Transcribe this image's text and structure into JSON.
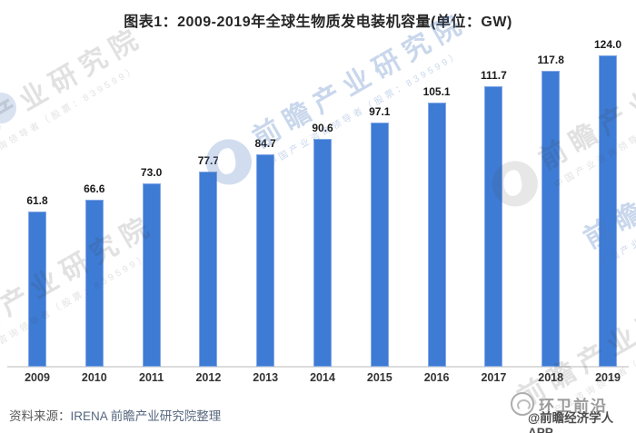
{
  "title": "图表1：2009-2019年全球生物质发电装机容量(单位：GW)",
  "chart_data": {
    "type": "bar",
    "title": "图表1：2009-2019年全球生物质发电装机容量(单位：GW)",
    "categories": [
      "2009",
      "2010",
      "2011",
      "2012",
      "2013",
      "2014",
      "2015",
      "2016",
      "2017",
      "2018",
      "2019"
    ],
    "values": [
      61.8,
      66.6,
      73.0,
      77.7,
      84.7,
      90.6,
      97.1,
      105.1,
      111.7,
      117.8,
      124.0
    ],
    "value_labels": [
      "61.8",
      "66.6",
      "73.0",
      "77.7",
      "84.7",
      "90.6",
      "97.1",
      "105.1",
      "111.7",
      "117.8",
      "124.0"
    ],
    "xlabel": "",
    "ylabel": "",
    "unit": "GW",
    "ylim": [
      0,
      130
    ],
    "grid": false,
    "legend": null,
    "bar_color": "#3D7BD5",
    "bar_edge_color": "#84A9E6",
    "axis_color": "#DCDCDC"
  },
  "source": {
    "prefix": "资料来源：",
    "text": "IRENA 前瞻产业研究院整理"
  },
  "watermark": {
    "brand": "前瞻产业研究院",
    "sub": "中国产业咨询领导者（股票：839599）"
  },
  "footer_right": {
    "wechat_name": "环卫前沿",
    "credit": "@前瞻经济学人APP"
  }
}
